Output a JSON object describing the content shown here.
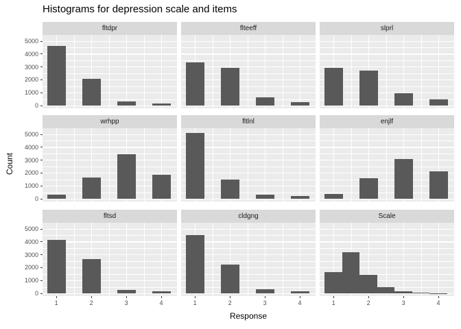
{
  "chart_data": {
    "type": "bar",
    "title": "Histograms for depression scale and items",
    "xlabel": "Response",
    "ylabel": "Count",
    "x_ticks": [
      "1",
      "2",
      "3",
      "4"
    ],
    "y_ticks": [
      "0",
      "1000",
      "2000",
      "3000",
      "4000",
      "5000"
    ],
    "xlim": [
      0.6,
      4.45
    ],
    "ylim": [
      0,
      5450
    ],
    "grid": true,
    "legend": "none",
    "facet_layout": "3x3",
    "colors": {
      "bar": "#595959",
      "panel_bg": "#EBEBEB",
      "strip_bg": "#D9D9D9",
      "grid": "#FFFFFF",
      "tick_text": "#4D4D4D",
      "title_text": "#000000"
    },
    "panels": [
      {
        "label": "fltdpr",
        "type": "bar",
        "categories": [
          1,
          2,
          3,
          4
        ],
        "values": [
          4650,
          2050,
          300,
          150
        ]
      },
      {
        "label": "flteeff",
        "type": "bar",
        "categories": [
          1,
          2,
          3,
          4
        ],
        "values": [
          3350,
          2900,
          650,
          250
        ]
      },
      {
        "label": "slprl",
        "type": "bar",
        "categories": [
          1,
          2,
          3,
          4
        ],
        "values": [
          2900,
          2700,
          950,
          500
        ]
      },
      {
        "label": "wrhpp",
        "type": "bar",
        "categories": [
          1,
          2,
          3,
          4
        ],
        "values": [
          300,
          1650,
          3450,
          1850
        ]
      },
      {
        "label": "fltlnl",
        "type": "bar",
        "categories": [
          1,
          2,
          3,
          4
        ],
        "values": [
          5100,
          1500,
          300,
          200
        ]
      },
      {
        "label": "enjlf",
        "type": "bar",
        "categories": [
          1,
          2,
          3,
          4
        ],
        "values": [
          350,
          1600,
          3100,
          2150
        ]
      },
      {
        "label": "fltsd",
        "type": "bar",
        "categories": [
          1,
          2,
          3,
          4
        ],
        "values": [
          4150,
          2650,
          250,
          150
        ]
      },
      {
        "label": "cldgng",
        "type": "bar",
        "categories": [
          1,
          2,
          3,
          4
        ],
        "values": [
          4500,
          2250,
          300,
          150
        ]
      },
      {
        "label": "Scale",
        "type": "histogram",
        "bin_edges": [
          0.75,
          1.25,
          1.75,
          2.25,
          2.75,
          3.25,
          3.75,
          4.25
        ],
        "bin_counts": [
          1650,
          3200,
          1450,
          500,
          150,
          50,
          20
        ]
      }
    ]
  }
}
